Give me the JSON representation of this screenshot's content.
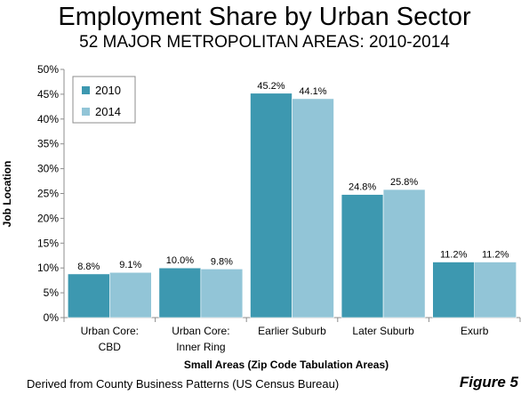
{
  "colors": {
    "series_2010": "#3d98b0",
    "series_2014": "#92c5d7",
    "axis": "#8c8c8c",
    "grid": "#d9d9d9"
  },
  "footer": {
    "source": "Derived from County Business Patterns (US Census Bureau)",
    "figure": "Figure 5"
  },
  "chart_data": {
    "type": "bar",
    "title": "Employment Share by Urban Sector",
    "subtitle": "52 MAJOR METROPOLITAN AREAS: 2010-2014",
    "xlabel": "Small Areas (Zip Code Tabulation Areas)",
    "ylabel": "Job Location",
    "ylim": [
      0,
      50
    ],
    "yticks": [
      "0%",
      "5%",
      "10%",
      "15%",
      "20%",
      "25%",
      "30%",
      "35%",
      "40%",
      "45%",
      "50%"
    ],
    "grid": false,
    "legend": "top-left",
    "categories": [
      [
        "Urban Core:",
        "CBD"
      ],
      [
        "Urban Core:",
        "Inner Ring"
      ],
      [
        "Earlier Suburb"
      ],
      [
        "Later Suburb"
      ],
      [
        "Exurb"
      ]
    ],
    "series": [
      {
        "name": "2010",
        "values": [
          8.8,
          10.0,
          45.2,
          24.8,
          11.2
        ],
        "labels": [
          "8.8%",
          "10.0%",
          "45.2%",
          "24.8%",
          "11.2%"
        ]
      },
      {
        "name": "2014",
        "values": [
          9.1,
          9.8,
          44.1,
          25.8,
          11.2
        ],
        "labels": [
          "9.1%",
          "9.8%",
          "44.1%",
          "25.8%",
          "11.2%"
        ]
      }
    ]
  }
}
